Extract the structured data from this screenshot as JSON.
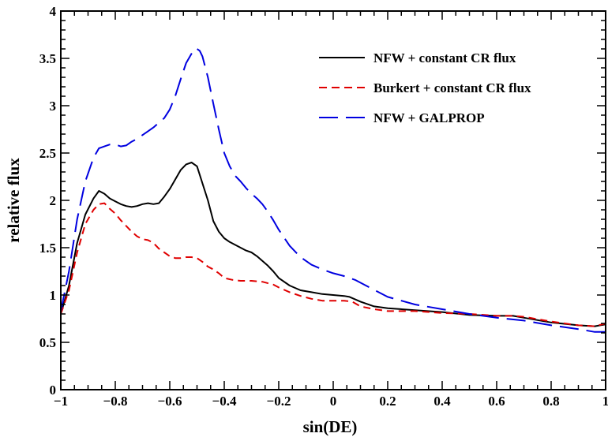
{
  "chart_data": {
    "type": "line",
    "title": "",
    "xlabel": "sin(DE)",
    "ylabel": "relative flux",
    "xlim": [
      -1,
      1
    ],
    "ylim": [
      0,
      4
    ],
    "x_ticks": [
      -1,
      -0.8,
      -0.6,
      -0.4,
      -0.2,
      0,
      0.2,
      0.4,
      0.6,
      0.8,
      1
    ],
    "x_tick_labels": [
      "−1",
      "−0.8",
      "−0.6",
      "−0.4",
      "−0.2",
      "0",
      "0.2",
      "0.4",
      "0.6",
      "0.8",
      "1"
    ],
    "y_ticks": [
      0,
      0.5,
      1,
      1.5,
      2,
      2.5,
      3,
      3.5,
      4
    ],
    "y_tick_labels": [
      "0",
      "0.5",
      "1",
      "1.5",
      "2",
      "2.5",
      "3",
      "3.5",
      "4"
    ],
    "grid": false,
    "legend_position": "top-right",
    "series": [
      {
        "name": "NFW + constant CR flux",
        "color": "#000000",
        "dash": "solid",
        "x": [
          -1,
          -0.97,
          -0.94,
          -0.91,
          -0.88,
          -0.86,
          -0.84,
          -0.82,
          -0.8,
          -0.78,
          -0.76,
          -0.74,
          -0.72,
          -0.7,
          -0.68,
          -0.66,
          -0.64,
          -0.62,
          -0.6,
          -0.58,
          -0.56,
          -0.54,
          -0.52,
          -0.5,
          -0.48,
          -0.46,
          -0.44,
          -0.42,
          -0.4,
          -0.38,
          -0.36,
          -0.34,
          -0.32,
          -0.3,
          -0.28,
          -0.26,
          -0.24,
          -0.22,
          -0.2,
          -0.16,
          -0.12,
          -0.08,
          -0.04,
          0,
          0.04,
          0.06,
          0.1,
          0.15,
          0.2,
          0.3,
          0.4,
          0.5,
          0.6,
          0.66,
          0.7,
          0.8,
          0.9,
          0.96,
          1
        ],
        "values": [
          0.8,
          1.1,
          1.55,
          1.85,
          2.02,
          2.1,
          2.07,
          2.02,
          1.99,
          1.96,
          1.94,
          1.93,
          1.94,
          1.96,
          1.97,
          1.96,
          1.97,
          2.04,
          2.12,
          2.22,
          2.32,
          2.38,
          2.4,
          2.36,
          2.18,
          2.0,
          1.78,
          1.67,
          1.6,
          1.56,
          1.53,
          1.5,
          1.47,
          1.45,
          1.41,
          1.36,
          1.31,
          1.25,
          1.18,
          1.1,
          1.05,
          1.03,
          1.01,
          1.0,
          0.99,
          0.98,
          0.93,
          0.88,
          0.86,
          0.84,
          0.82,
          0.79,
          0.78,
          0.78,
          0.76,
          0.71,
          0.68,
          0.67,
          0.69
        ]
      },
      {
        "name": "Burkert + constant CR flux",
        "color": "#e00000",
        "dash": "short",
        "x": [
          -1,
          -0.97,
          -0.94,
          -0.91,
          -0.88,
          -0.86,
          -0.84,
          -0.82,
          -0.8,
          -0.78,
          -0.76,
          -0.74,
          -0.72,
          -0.7,
          -0.68,
          -0.66,
          -0.64,
          -0.62,
          -0.6,
          -0.58,
          -0.56,
          -0.54,
          -0.52,
          -0.5,
          -0.48,
          -0.46,
          -0.44,
          -0.42,
          -0.4,
          -0.37,
          -0.34,
          -0.3,
          -0.26,
          -0.22,
          -0.2,
          -0.16,
          -0.12,
          -0.08,
          -0.04,
          0,
          0.04,
          0.07,
          0.1,
          0.15,
          0.2,
          0.3,
          0.4,
          0.5,
          0.6,
          0.66,
          0.7,
          0.8,
          0.9,
          0.96,
          1
        ],
        "values": [
          0.8,
          1.05,
          1.45,
          1.75,
          1.9,
          1.96,
          1.97,
          1.91,
          1.86,
          1.79,
          1.73,
          1.67,
          1.62,
          1.59,
          1.58,
          1.55,
          1.49,
          1.45,
          1.41,
          1.39,
          1.39,
          1.4,
          1.4,
          1.39,
          1.35,
          1.3,
          1.27,
          1.23,
          1.18,
          1.16,
          1.15,
          1.15,
          1.14,
          1.11,
          1.08,
          1.03,
          0.99,
          0.96,
          0.94,
          0.94,
          0.94,
          0.93,
          0.88,
          0.85,
          0.83,
          0.83,
          0.81,
          0.8,
          0.78,
          0.78,
          0.77,
          0.72,
          0.68,
          0.67,
          0.7
        ]
      },
      {
        "name": "NFW + GALPROP",
        "color": "#0000e0",
        "dash": "long",
        "x": [
          -1,
          -0.97,
          -0.94,
          -0.91,
          -0.88,
          -0.86,
          -0.84,
          -0.82,
          -0.8,
          -0.78,
          -0.76,
          -0.74,
          -0.72,
          -0.7,
          -0.68,
          -0.66,
          -0.64,
          -0.62,
          -0.6,
          -0.58,
          -0.56,
          -0.54,
          -0.52,
          -0.51,
          -0.5,
          -0.49,
          -0.48,
          -0.46,
          -0.44,
          -0.42,
          -0.4,
          -0.38,
          -0.36,
          -0.34,
          -0.32,
          -0.3,
          -0.28,
          -0.26,
          -0.24,
          -0.22,
          -0.2,
          -0.16,
          -0.12,
          -0.08,
          -0.04,
          0,
          0.04,
          0.08,
          0.12,
          0.2,
          0.3,
          0.4,
          0.5,
          0.6,
          0.7,
          0.8,
          0.9,
          0.96,
          1
        ],
        "values": [
          0.83,
          1.25,
          1.8,
          2.2,
          2.45,
          2.55,
          2.57,
          2.59,
          2.59,
          2.57,
          2.58,
          2.62,
          2.65,
          2.69,
          2.73,
          2.77,
          2.82,
          2.87,
          2.96,
          3.1,
          3.28,
          3.45,
          3.55,
          3.6,
          3.6,
          3.58,
          3.52,
          3.3,
          3.02,
          2.75,
          2.5,
          2.36,
          2.26,
          2.2,
          2.13,
          2.07,
          2.02,
          1.96,
          1.88,
          1.79,
          1.69,
          1.52,
          1.4,
          1.32,
          1.27,
          1.23,
          1.2,
          1.16,
          1.1,
          0.98,
          0.9,
          0.85,
          0.8,
          0.76,
          0.73,
          0.68,
          0.64,
          0.61,
          0.61
        ]
      }
    ]
  }
}
